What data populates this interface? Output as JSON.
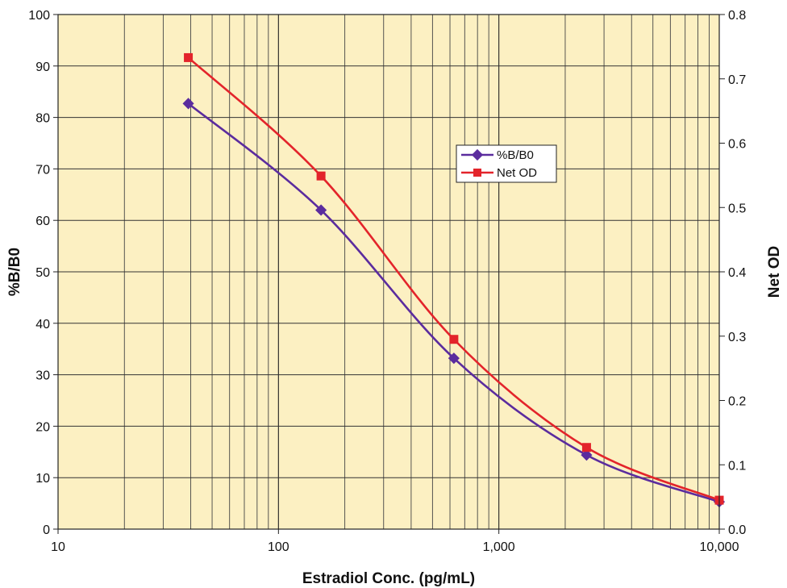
{
  "chart_data": {
    "type": "line",
    "title": "",
    "xlabel": "Estradiol Conc. (pg/mL)",
    "xscale": "log",
    "xlim": [
      10,
      10000
    ],
    "x_tick_labels": [
      "10",
      "100",
      "1,000",
      "10,000"
    ],
    "ylabel_left": "%B/B0",
    "ylim_left": [
      0,
      100
    ],
    "y_left_tick_labels": [
      "0",
      "10",
      "20",
      "30",
      "40",
      "50",
      "60",
      "70",
      "80",
      "90",
      "100"
    ],
    "ylabel_right": "Net OD",
    "ylim_right": [
      0,
      0.8
    ],
    "y_right_tick_labels": [
      "0.0",
      "0.1",
      "0.2",
      "0.3",
      "0.4",
      "0.5",
      "0.6",
      "0.7",
      "0.8"
    ],
    "grid": true,
    "plot_background": "#fcf0c2",
    "legend_position": "center-right",
    "x": [
      39,
      156,
      625,
      2500,
      10000
    ],
    "series": [
      {
        "name": "%B/B0",
        "axis": "left",
        "color": "#5b2c9e",
        "marker": "diamond",
        "values": [
          82.7,
          62.0,
          33.2,
          14.4,
          5.3
        ]
      },
      {
        "name": "Net OD",
        "axis": "right",
        "color": "#e3242b",
        "marker": "square",
        "values": [
          0.733,
          0.549,
          0.295,
          0.127,
          0.045
        ]
      }
    ]
  }
}
